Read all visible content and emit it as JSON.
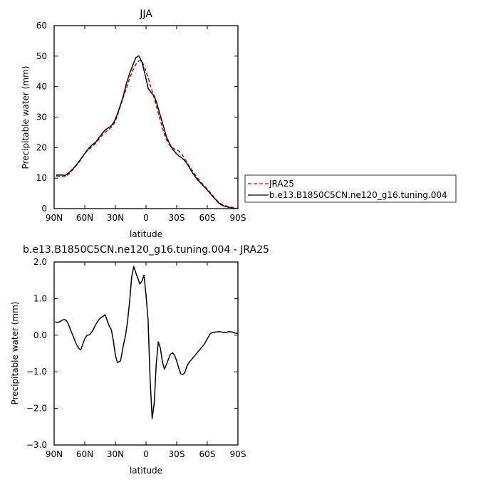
{
  "chart_data": [
    {
      "type": "line",
      "title": "JJA",
      "xlabel": "latitude",
      "ylabel": "Precipitable water (mm)",
      "xlim": [
        90,
        -90
      ],
      "ylim": [
        0,
        60
      ],
      "x_ticks": [
        90,
        60,
        30,
        0,
        -30,
        -60,
        -90
      ],
      "x_tick_labels": [
        "90N",
        "60N",
        "30N",
        "0",
        "30S",
        "60S",
        "90S"
      ],
      "y_ticks": [
        0,
        10,
        20,
        30,
        40,
        50,
        60
      ],
      "y_tick_labels": [
        "0",
        "10",
        "20",
        "30",
        "40",
        "50",
        "60"
      ],
      "legend_position": "right",
      "series": [
        {
          "name": "JRA25",
          "color": "#cc0000",
          "dash": "dashed",
          "x": [
            88,
            85,
            82,
            79,
            76,
            73,
            70,
            67,
            64,
            61,
            58,
            55,
            52,
            49,
            46,
            43,
            40,
            37,
            34,
            31,
            28,
            25,
            22,
            19,
            16,
            13,
            10,
            7,
            4,
            1,
            -2,
            -5,
            -8,
            -11,
            -14,
            -17,
            -20,
            -23,
            -26,
            -29,
            -32,
            -35,
            -38,
            -41,
            -44,
            -47,
            -50,
            -53,
            -56,
            -59,
            -62,
            -65,
            -68,
            -71,
            -74,
            -77,
            -80,
            -83,
            -86,
            -89
          ],
          "values": [
            10.7,
            10.6,
            10.5,
            10.5,
            11.2,
            12.3,
            13.4,
            14.7,
            16.0,
            17.5,
            18.8,
            19.7,
            20.6,
            21.5,
            22.9,
            24.0,
            25.0,
            25.9,
            26.7,
            28.0,
            30.5,
            33.8,
            36.8,
            39.7,
            42.8,
            45.3,
            47.3,
            48.5,
            48.3,
            46.0,
            43.0,
            39.5,
            36.2,
            32.5,
            28.8,
            25.3,
            22.5,
            20.8,
            19.9,
            19.3,
            18.9,
            17.9,
            16.3,
            14.6,
            13.2,
            11.6,
            10.2,
            9.0,
            7.8,
            6.8,
            5.6,
            4.4,
            3.2,
            2.1,
            1.4,
            1.0,
            0.7,
            0.5,
            0.3,
            0.2
          ]
        },
        {
          "name": "b.e13.B1850C5CN.ne120_g16.tuning.004",
          "color": "#000000",
          "dash": "solid",
          "x": [
            88,
            85,
            82,
            79,
            76,
            73,
            70,
            67,
            64,
            61,
            58,
            55,
            52,
            49,
            46,
            43,
            40,
            37,
            34,
            31,
            28,
            25,
            22,
            19,
            16,
            13,
            10,
            7,
            4,
            1,
            -2,
            -5,
            -8,
            -11,
            -14,
            -17,
            -20,
            -23,
            -26,
            -29,
            -32,
            -35,
            -38,
            -41,
            -44,
            -47,
            -50,
            -53,
            -56,
            -59,
            -62,
            -65,
            -68,
            -71,
            -74,
            -77,
            -80,
            -83,
            -86,
            -89
          ],
          "values": [
            11.0,
            11.0,
            11.0,
            10.9,
            11.6,
            12.6,
            13.6,
            14.9,
            16.2,
            17.6,
            19.0,
            20.2,
            21.1,
            21.9,
            23.3,
            24.6,
            25.8,
            26.5,
            27.2,
            28.6,
            31.1,
            34.0,
            37.3,
            41.3,
            44.4,
            47.0,
            49.5,
            50.1,
            48.0,
            44.0,
            39.5,
            38.0,
            37.0,
            34.0,
            30.5,
            27.0,
            23.5,
            21.3,
            19.5,
            18.3,
            17.3,
            16.6,
            15.7,
            14.3,
            12.5,
            11.0,
            9.6,
            8.6,
            7.5,
            6.5,
            5.3,
            4.1,
            3.0,
            1.9,
            1.2,
            0.8,
            0.5,
            0.3,
            0.1,
            0.0
          ]
        }
      ]
    },
    {
      "type": "line",
      "title": "b.e13.B1850C5CN.ne120_g16.tuning.004 - JRA25",
      "xlabel": "latitude",
      "ylabel": "Precipitable water (mm)",
      "xlim": [
        90,
        -90
      ],
      "ylim": [
        -3.0,
        2.0
      ],
      "x_ticks": [
        90,
        60,
        30,
        0,
        -30,
        -60,
        -90
      ],
      "x_tick_labels": [
        "90N",
        "60N",
        "30N",
        "0",
        "30S",
        "60S",
        "90S"
      ],
      "y_ticks": [
        2,
        1,
        0,
        -1,
        -2,
        -3
      ],
      "y_tick_labels": [
        "2.0",
        "1.0",
        "0.0",
        "−1.0",
        "−2.0",
        "−3.0"
      ],
      "series": [
        {
          "color": "#000000",
          "x": [
            89,
            87,
            85,
            82,
            80,
            78,
            76,
            74,
            71,
            69,
            66,
            64,
            62,
            60,
            58,
            55,
            52,
            50,
            48,
            46,
            44,
            42,
            40,
            38,
            36,
            34,
            32,
            30,
            28,
            25,
            22,
            20,
            18,
            16,
            14,
            12,
            10,
            8,
            6,
            4,
            2,
            0,
            -2,
            -4,
            -6,
            -8,
            -10,
            -12,
            -14,
            -16,
            -18,
            -20,
            -22,
            -24,
            -26,
            -28,
            -30,
            -32,
            -34,
            -36,
            -38,
            -40,
            -42,
            -45,
            -48,
            -51,
            -54,
            -57,
            -60,
            -63,
            -66,
            -69,
            -72,
            -75,
            -78,
            -81,
            -84,
            -87,
            -90
          ],
          "values": [
            0.37,
            0.35,
            0.36,
            0.41,
            0.43,
            0.4,
            0.3,
            0.15,
            -0.05,
            -0.2,
            -0.36,
            -0.4,
            -0.25,
            -0.1,
            -0.01,
            0.02,
            0.14,
            0.25,
            0.35,
            0.43,
            0.48,
            0.52,
            0.56,
            0.4,
            0.25,
            0.15,
            -0.15,
            -0.55,
            -0.75,
            -0.7,
            -0.25,
            0.0,
            0.4,
            0.95,
            1.6,
            1.88,
            1.7,
            1.55,
            1.4,
            1.48,
            1.64,
            1.1,
            0.4,
            -1.2,
            -2.28,
            -1.85,
            -0.8,
            -0.18,
            -0.35,
            -0.72,
            -0.93,
            -0.8,
            -0.65,
            -0.52,
            -0.48,
            -0.55,
            -0.7,
            -0.9,
            -1.05,
            -1.08,
            -1.02,
            -0.85,
            -0.75,
            -0.65,
            -0.55,
            -0.45,
            -0.35,
            -0.25,
            -0.1,
            0.05,
            0.08,
            0.09,
            0.1,
            0.08,
            0.07,
            0.1,
            0.09,
            0.06,
            0.05
          ]
        }
      ]
    }
  ]
}
